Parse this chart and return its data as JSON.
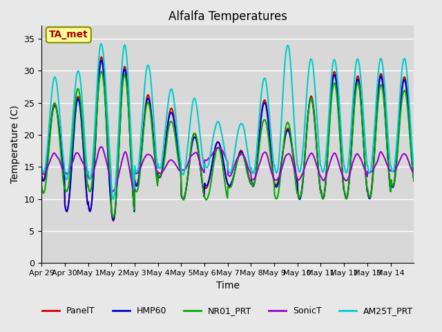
{
  "title": "Alfalfa Temperatures",
  "xlabel": "Time",
  "ylabel": "Temperature (C)",
  "ylim": [
    0,
    37
  ],
  "yticks": [
    0,
    5,
    10,
    15,
    20,
    25,
    30,
    35
  ],
  "legend_entries": [
    "PanelT",
    "HMP60",
    "NR01_PRT",
    "SonicT",
    "AM25T_PRT"
  ],
  "colors": {
    "PanelT": "#cc0000",
    "HMP60": "#0000cc",
    "NR01_PRT": "#00aa00",
    "SonicT": "#9900cc",
    "AM25T_PRT": "#00cccc"
  },
  "line_widths": {
    "PanelT": 1.5,
    "HMP60": 1.5,
    "NR01_PRT": 1.5,
    "SonicT": 1.5,
    "AM25T_PRT": 1.5
  },
  "x_tick_labels": [
    "Apr 29",
    "Apr 30",
    "May 1",
    "May 2",
    "May 3",
    "May 4",
    "May 5",
    "May 6",
    "May 7",
    "May 8",
    "May 9",
    "May 10",
    "May 11",
    "May 12",
    "May 13",
    "May 14"
  ],
  "background_color": "#e8e8e8",
  "plot_bg_color": "#d8d8d8",
  "grid_color": "#ffffff",
  "annotation_box_color": "#ffff99",
  "annotation_text_color": "#aa0000",
  "annotation_text": "TA_met"
}
